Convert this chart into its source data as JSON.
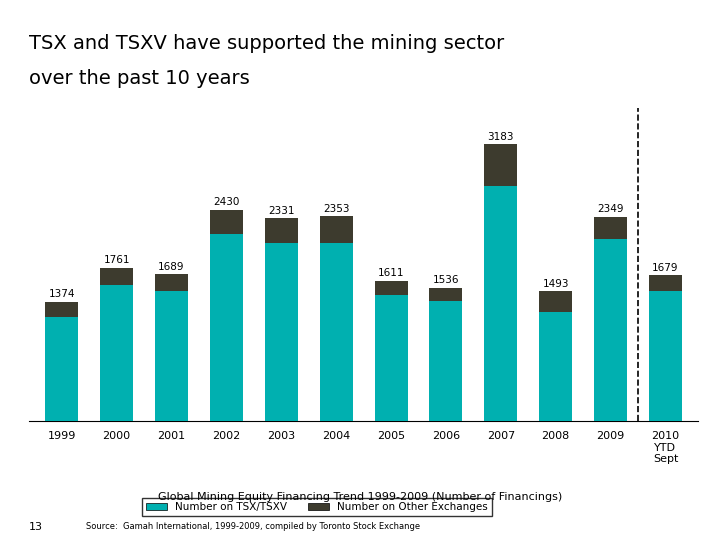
{
  "years": [
    "1999",
    "2000",
    "2001",
    "2002",
    "2003",
    "2004",
    "2005",
    "2006",
    "2007",
    "2008",
    "2009",
    "2010\nYTD\nSept"
  ],
  "totals": [
    1374,
    1761,
    1689,
    2430,
    2331,
    2353,
    1611,
    1536,
    3183,
    1493,
    2349,
    1679
  ],
  "tsx_tsxv": [
    1200,
    1560,
    1500,
    2150,
    2050,
    2050,
    1450,
    1380,
    2700,
    1250,
    2100,
    1500
  ],
  "other": [
    174,
    201,
    189,
    280,
    281,
    303,
    161,
    156,
    483,
    243,
    249,
    179
  ],
  "tsx_color": "#00b0b0",
  "other_color": "#3d3b2e",
  "title_line1": "TSX and TSXV have supported the mining sector",
  "title_line2": "over the past 10 years",
  "subtitle": "Global Mining Equity Financing Trend 1999-2009 (Number of Financings)",
  "source": "Source:  Gamah International, 1999-2009, compiled by Toronto Stock Exchange",
  "legend_tsx": "Number on TSX/TSXV",
  "legend_other": "Number on Other Exchanges",
  "background_color": "#ffffff",
  "page_number": "13"
}
